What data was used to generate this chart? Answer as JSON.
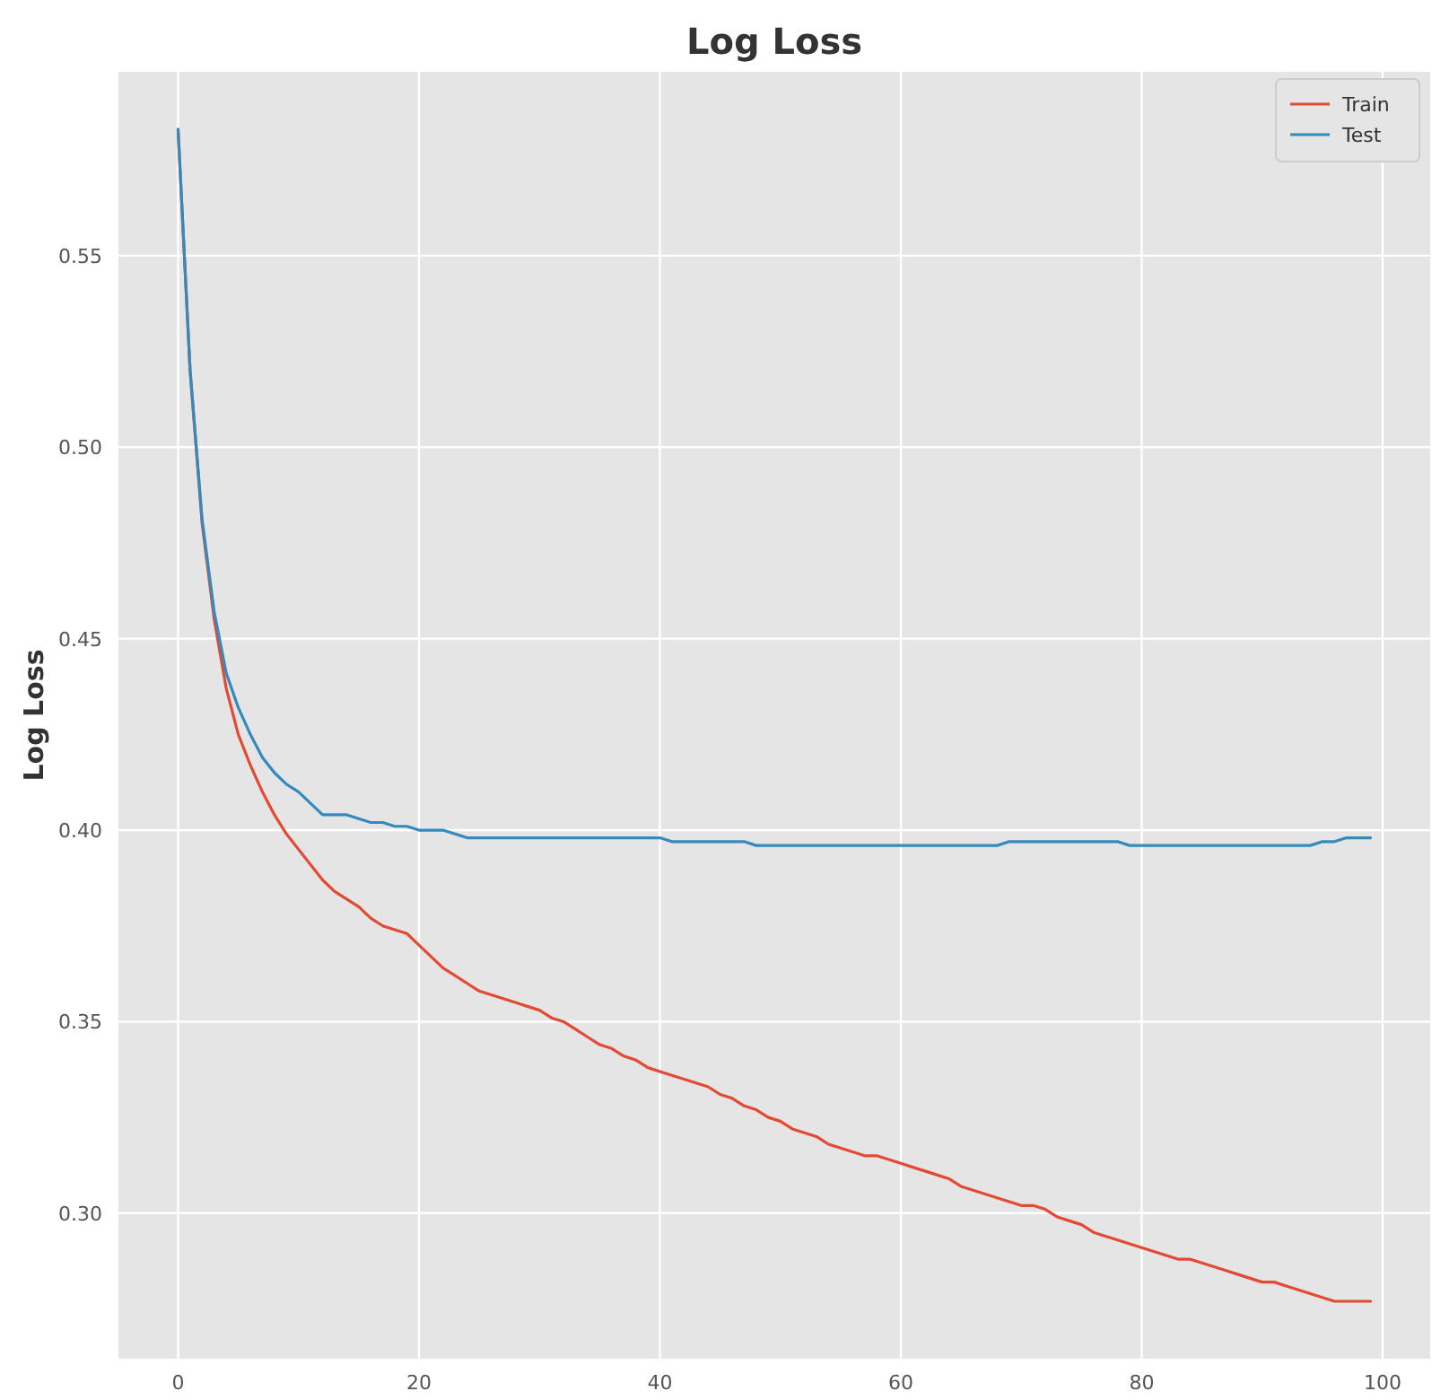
{
  "chart_data": {
    "type": "line",
    "title": "Log Loss",
    "ylabel": "Log Loss",
    "x": [
      0,
      1,
      2,
      3,
      4,
      5,
      6,
      7,
      8,
      9,
      10,
      11,
      12,
      13,
      14,
      15,
      16,
      17,
      18,
      19,
      20,
      21,
      22,
      23,
      24,
      25,
      26,
      27,
      28,
      29,
      30,
      31,
      32,
      33,
      34,
      35,
      36,
      37,
      38,
      39,
      40,
      41,
      42,
      43,
      44,
      45,
      46,
      47,
      48,
      49,
      50,
      51,
      52,
      53,
      54,
      55,
      56,
      57,
      58,
      59,
      60,
      61,
      62,
      63,
      64,
      65,
      66,
      67,
      68,
      69,
      70,
      71,
      72,
      73,
      74,
      75,
      76,
      77,
      78,
      79,
      80,
      81,
      82,
      83,
      84,
      85,
      86,
      87,
      88,
      89,
      90,
      91,
      92,
      93,
      94,
      95,
      96,
      97,
      98,
      99
    ],
    "series": [
      {
        "name": "Train",
        "color": "#e24a33",
        "values": [
          0.583,
          0.52,
          0.48,
          0.455,
          0.437,
          0.425,
          0.417,
          0.41,
          0.404,
          0.399,
          0.395,
          0.391,
          0.387,
          0.384,
          0.382,
          0.38,
          0.377,
          0.375,
          0.374,
          0.373,
          0.37,
          0.367,
          0.364,
          0.362,
          0.36,
          0.358,
          0.357,
          0.356,
          0.355,
          0.354,
          0.353,
          0.351,
          0.35,
          0.348,
          0.346,
          0.344,
          0.343,
          0.341,
          0.34,
          0.338,
          0.337,
          0.336,
          0.335,
          0.334,
          0.333,
          0.331,
          0.33,
          0.328,
          0.327,
          0.325,
          0.324,
          0.322,
          0.321,
          0.32,
          0.318,
          0.317,
          0.316,
          0.315,
          0.315,
          0.314,
          0.313,
          0.312,
          0.311,
          0.31,
          0.309,
          0.307,
          0.306,
          0.305,
          0.304,
          0.303,
          0.302,
          0.302,
          0.301,
          0.299,
          0.298,
          0.297,
          0.295,
          0.294,
          0.293,
          0.292,
          0.291,
          0.29,
          0.289,
          0.288,
          0.288,
          0.287,
          0.286,
          0.285,
          0.284,
          0.283,
          0.282,
          0.282,
          0.281,
          0.28,
          0.279,
          0.278,
          0.277,
          0.277,
          0.277,
          0.277
        ]
      },
      {
        "name": "Test",
        "color": "#348abd",
        "values": [
          0.583,
          0.52,
          0.481,
          0.457,
          0.441,
          0.432,
          0.425,
          0.419,
          0.415,
          0.412,
          0.41,
          0.407,
          0.404,
          0.404,
          0.404,
          0.403,
          0.402,
          0.402,
          0.401,
          0.401,
          0.4,
          0.4,
          0.4,
          0.399,
          0.398,
          0.398,
          0.398,
          0.398,
          0.398,
          0.398,
          0.398,
          0.398,
          0.398,
          0.398,
          0.398,
          0.398,
          0.398,
          0.398,
          0.398,
          0.398,
          0.398,
          0.397,
          0.397,
          0.397,
          0.397,
          0.397,
          0.397,
          0.397,
          0.396,
          0.396,
          0.396,
          0.396,
          0.396,
          0.396,
          0.396,
          0.396,
          0.396,
          0.396,
          0.396,
          0.396,
          0.396,
          0.396,
          0.396,
          0.396,
          0.396,
          0.396,
          0.396,
          0.396,
          0.396,
          0.397,
          0.397,
          0.397,
          0.397,
          0.397,
          0.397,
          0.397,
          0.397,
          0.397,
          0.397,
          0.396,
          0.396,
          0.396,
          0.396,
          0.396,
          0.396,
          0.396,
          0.396,
          0.396,
          0.396,
          0.396,
          0.396,
          0.396,
          0.396,
          0.396,
          0.396,
          0.397,
          0.397,
          0.398,
          0.398,
          0.398
        ]
      }
    ],
    "xlim": [
      -4.95,
      103.95
    ],
    "ylim": [
      0.262,
      0.598
    ],
    "xticks": [
      0,
      20,
      40,
      60,
      80,
      100
    ],
    "yticks": [
      {
        "value": 0.3,
        "label": "0.30"
      },
      {
        "value": 0.35,
        "label": "0.35"
      },
      {
        "value": 0.4,
        "label": "0.40"
      },
      {
        "value": 0.45,
        "label": "0.45"
      },
      {
        "value": 0.5,
        "label": "0.50"
      },
      {
        "value": 0.55,
        "label": "0.55"
      }
    ],
    "grid": true,
    "legend": "top right"
  }
}
